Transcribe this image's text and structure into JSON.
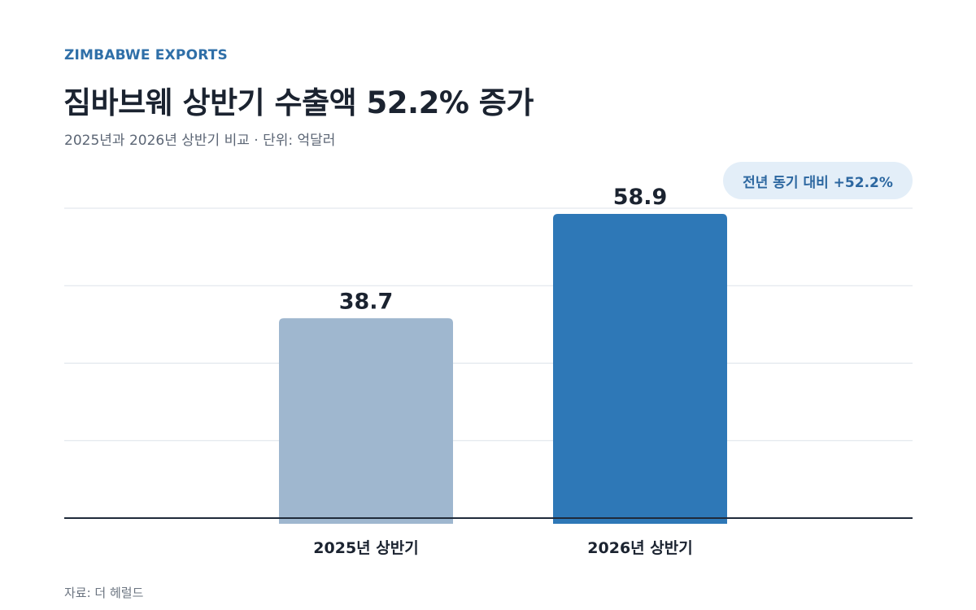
{
  "header": {
    "kicker": "ZIMBABWE EXPORTS",
    "title": "짐바브웨 상반기 수출액 52.2% 증가",
    "subtitle": "2025년과 2026년 상반기 비교 · 단위: 억달러"
  },
  "badge": {
    "label": "전년 동기 대비 +52.2%"
  },
  "footer": {
    "source": "자료: 더 헤럴드"
  },
  "chart_data": {
    "type": "bar",
    "categories": [
      "2025년 상반기",
      "2026년 상반기"
    ],
    "values": [
      38.7,
      58.9
    ],
    "value_labels": [
      "38.7",
      "58.9"
    ],
    "bar_colors": [
      "#9fb7cf",
      "#2e78b7"
    ],
    "ylim": [
      0,
      60
    ],
    "grid": true,
    "unit": "억달러"
  }
}
